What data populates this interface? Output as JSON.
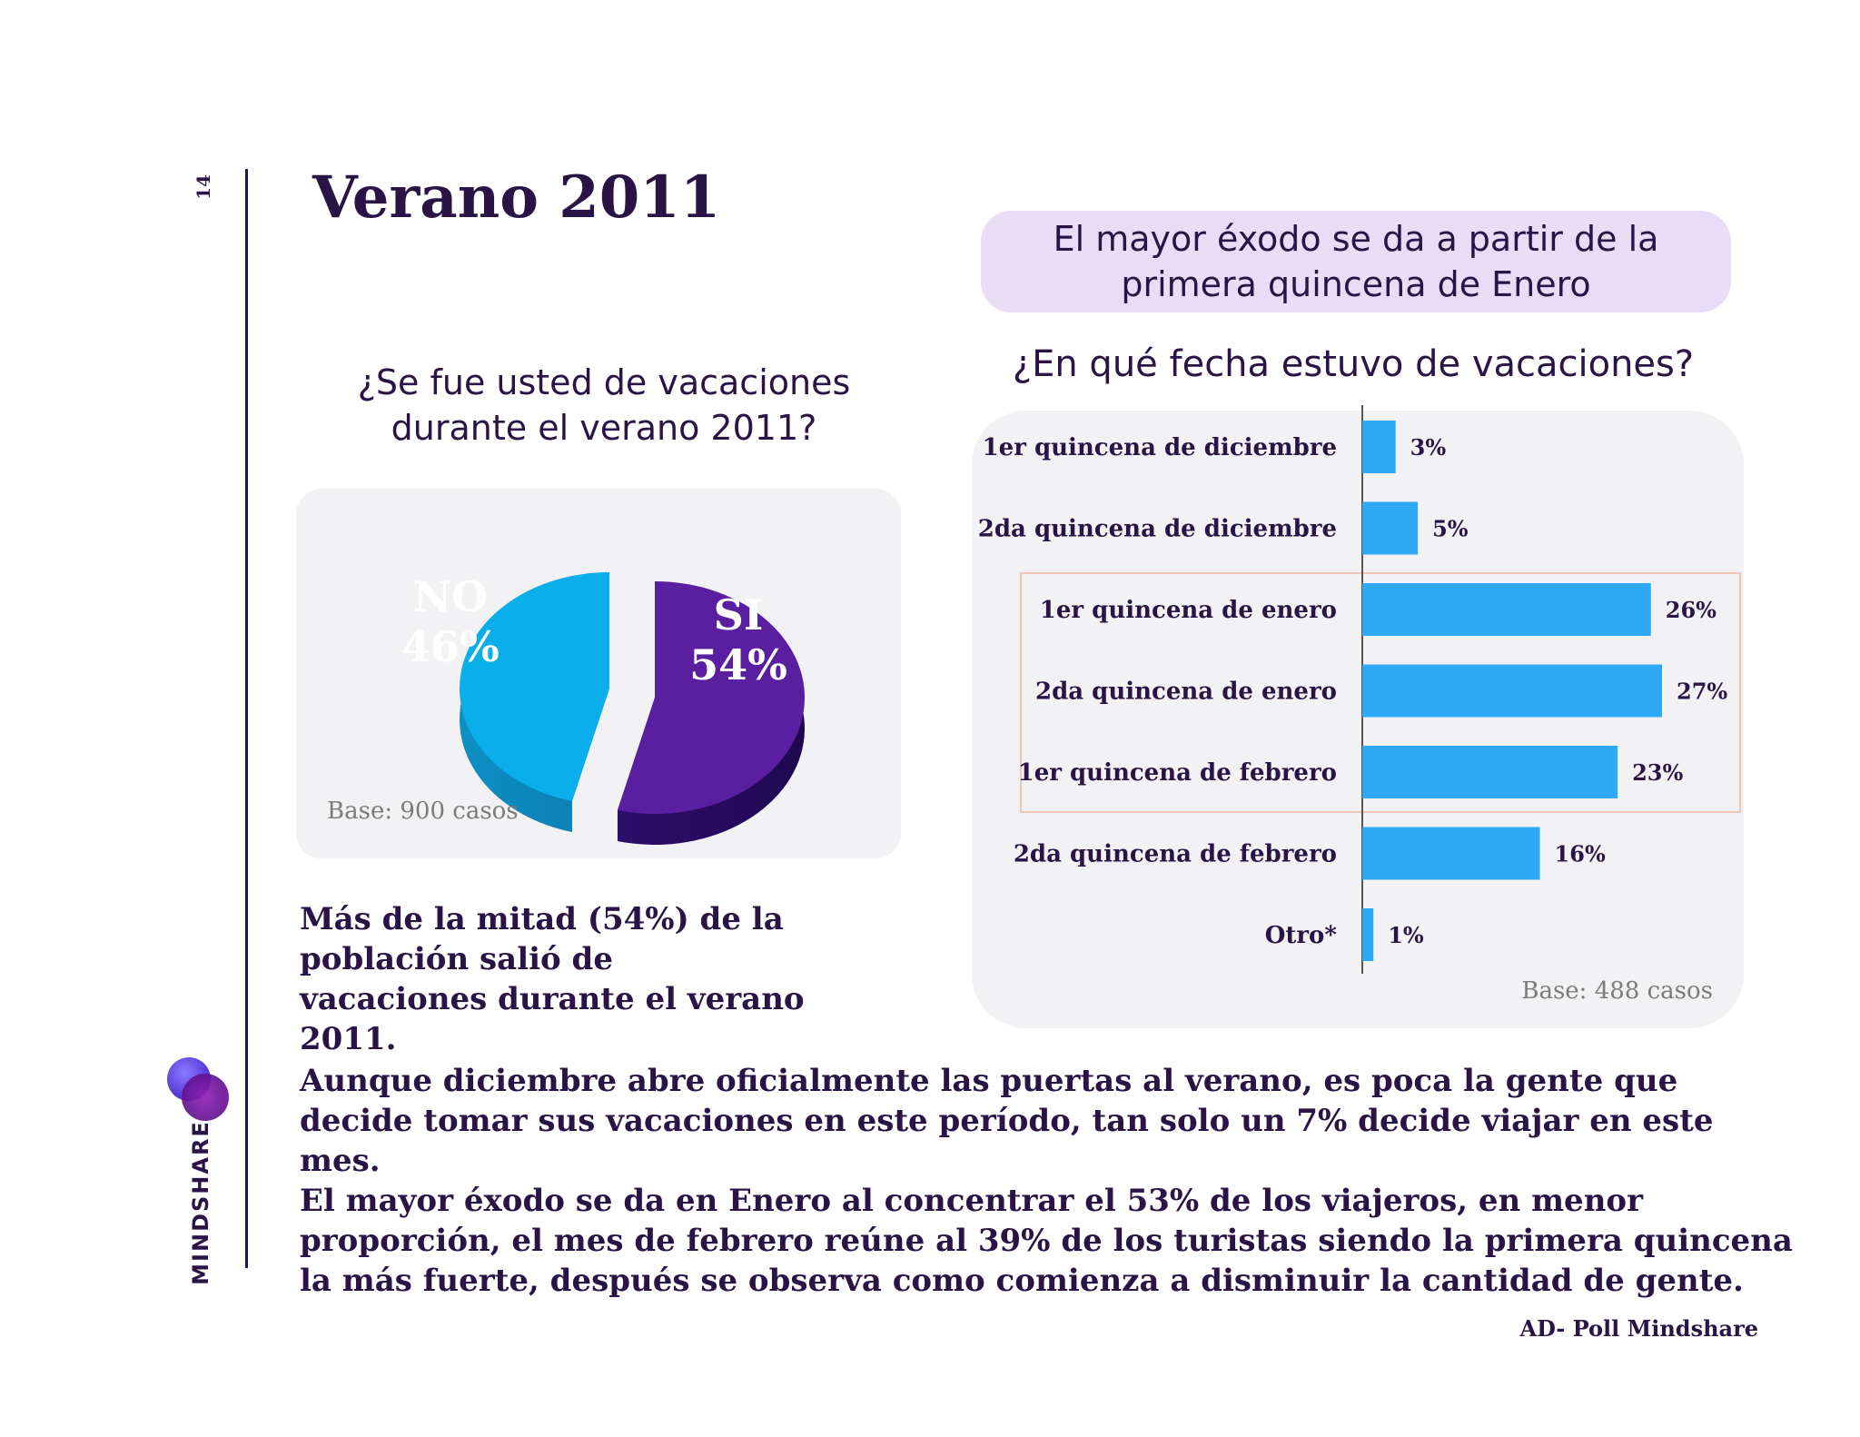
{
  "page_number": "14",
  "title": "Verano 2011",
  "brand": "MINDSHARE",
  "callout": "El mayor éxodo se da a partir de la primera quincena de Enero",
  "colors": {
    "accent_purple": "#5a1fa0",
    "accent_blue": "#2fa9f5",
    "pie_no": "#0aaeea",
    "pie_si": "#5a1fa0",
    "text": "#2a1446"
  },
  "pie_section": {
    "question": "¿Se fue usted de vacaciones durante el verano 2011?",
    "base": "Base: 900 casos",
    "summary": "Más de la mitad (54%) de la población salió de vacaciones durante el  verano 2011."
  },
  "bar_section": {
    "question": "¿En qué fecha estuvo de vacaciones?",
    "base": "Base: 488 casos"
  },
  "chart_data": [
    {
      "type": "pie",
      "categories": [
        "NO",
        "SI"
      ],
      "values": [
        46,
        54
      ],
      "value_labels": [
        "46%",
        "54%"
      ],
      "title": "¿Se fue usted de vacaciones durante el verano 2011?",
      "colors": [
        "#0aaeea",
        "#5a1fa0"
      ]
    },
    {
      "type": "bar",
      "orientation": "horizontal",
      "categories": [
        "1er quincena de diciembre",
        "2da quincena de diciembre",
        "1er quincena de enero",
        "2da quincena de enero",
        "1er quincena de febrero",
        "2da quincena de febrero",
        "Otro*"
      ],
      "values": [
        3,
        5,
        26,
        27,
        23,
        16,
        1
      ],
      "value_labels": [
        "3%",
        "5%",
        "26%",
        "27%",
        "23%",
        "16%",
        "1%"
      ],
      "title": "¿En qué fecha estuvo de vacaciones?",
      "highlighted": [
        "1er quincena de enero",
        "2da quincena de enero",
        "1er quincena de febrero"
      ],
      "color": "#2fa9f5",
      "xlim": [
        0,
        30
      ]
    }
  ],
  "body_text": [
    "Aunque diciembre abre oficialmente las puertas al verano, es poca la gente que decide tomar sus vacaciones en este período, tan solo un 7% decide viajar en este mes.",
    "El mayor éxodo se da en Enero al concentrar el 53% de los viajeros, en menor proporción, el mes de febrero reúne al 39% de los turistas siendo la primera quincena la más fuerte, después se observa como comienza a disminuir la cantidad de gente."
  ],
  "footer": "AD- Poll Mindshare"
}
